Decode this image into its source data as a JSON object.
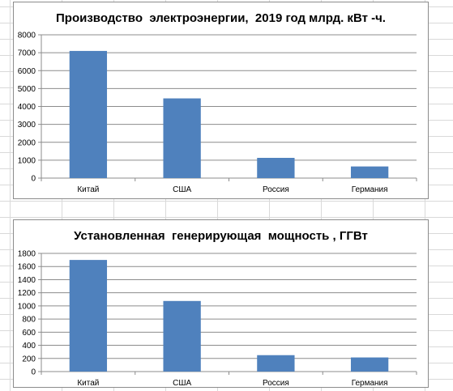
{
  "chart_data": [
    {
      "type": "bar",
      "title": "Производство  электроэнергии,  2019 год млрд. кВт -ч.",
      "categories": [
        "Китай",
        "США",
        "Россия",
        "Германия"
      ],
      "values": [
        7100,
        4450,
        1130,
        650
      ],
      "ylim": [
        0,
        8000
      ],
      "yticks": [
        0,
        1000,
        2000,
        3000,
        4000,
        5000,
        6000,
        7000,
        8000
      ],
      "grid": true,
      "legend": "none",
      "bar_color": "#4f81bd"
    },
    {
      "type": "bar",
      "title": "Установленная  генерирующая  мощность , ГГВт",
      "categories": [
        "Китай",
        "США",
        "Россия",
        "Германия"
      ],
      "values": [
        1700,
        1075,
        250,
        215
      ],
      "ylim": [
        0,
        1800
      ],
      "yticks": [
        0,
        200,
        400,
        600,
        800,
        1000,
        1200,
        1400,
        1600,
        1800
      ],
      "grid": true,
      "legend": "none",
      "bar_color": "#4f81bd"
    }
  ]
}
